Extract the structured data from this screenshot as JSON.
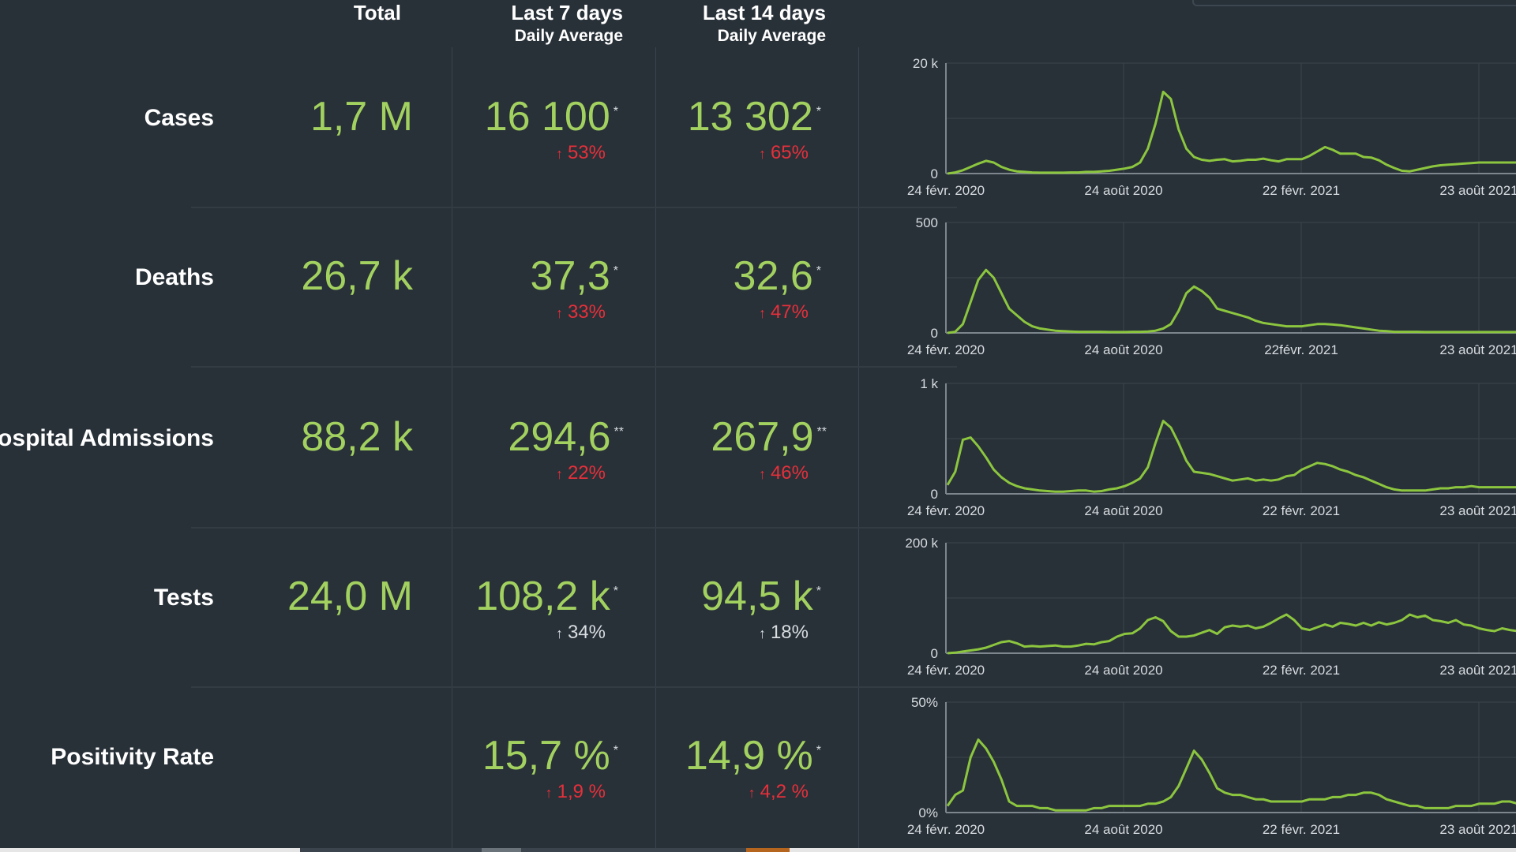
{
  "headers": {
    "total": "Total",
    "last7_title": "Last 7 days",
    "last7_sub": "Daily Average",
    "last14_title": "Last 14 days",
    "last14_sub": "Daily Average"
  },
  "colors": {
    "background": "#283038",
    "value_green": "#a2d160",
    "increase_red": "#e6303a",
    "neutral_grey": "#d8dde0",
    "line_green": "#8cc63f"
  },
  "rows": [
    {
      "label": "Cases",
      "total": "1,7 M",
      "last7": "16 100",
      "last7_mark": "*",
      "last7_change": "53%",
      "last7_color": "red",
      "last14": "13 302",
      "last14_mark": "*",
      "last14_change": "65%",
      "last14_color": "red",
      "arrow": "↑",
      "chart": {
        "y_top_label": "20 k",
        "y_bottom_label": "0",
        "ylim": [
          0,
          20000
        ],
        "x_labels": [
          "24 févr. 2020",
          "24 août 2020",
          "22 févr. 2021",
          "23 août 2021"
        ],
        "series": [
          0,
          200,
          600,
          1200,
          1800,
          2300,
          2000,
          1200,
          700,
          400,
          300,
          200,
          150,
          150,
          150,
          150,
          200,
          200,
          300,
          300,
          400,
          500,
          700,
          900,
          1200,
          2000,
          4500,
          9000,
          14800,
          13500,
          8000,
          4500,
          3000,
          2500,
          2300,
          2500,
          2600,
          2200,
          2300,
          2500,
          2500,
          2700,
          2400,
          2200,
          2600,
          2600,
          2600,
          3200,
          4000,
          4800,
          4300,
          3600,
          3600,
          3600,
          3000,
          2900,
          2400,
          1600,
          1000,
          500,
          400,
          700,
          1000,
          1300,
          1500,
          1600,
          1700,
          1800,
          1900,
          2000,
          2000,
          2000,
          2000,
          2000,
          2000
        ]
      }
    },
    {
      "label": "Deaths",
      "total": "26,7 k",
      "last7": "37,3",
      "last7_mark": "*",
      "last7_change": "33%",
      "last7_color": "red",
      "last14": "32,6",
      "last14_mark": "*",
      "last14_change": "47%",
      "last14_color": "red",
      "arrow": "↑",
      "chart": {
        "y_top_label": "500",
        "y_bottom_label": "0",
        "ylim": [
          0,
          500
        ],
        "x_labels": [
          "24 févr. 2020",
          "24 août 2020",
          "22févr. 2021",
          "23 août 2021"
        ],
        "series": [
          0,
          5,
          40,
          140,
          240,
          285,
          250,
          180,
          110,
          80,
          50,
          30,
          20,
          15,
          10,
          8,
          6,
          5,
          5,
          5,
          5,
          4,
          4,
          4,
          5,
          5,
          6,
          10,
          20,
          40,
          100,
          180,
          210,
          190,
          160,
          110,
          100,
          90,
          80,
          70,
          55,
          45,
          40,
          35,
          30,
          30,
          30,
          35,
          40,
          40,
          38,
          35,
          30,
          25,
          20,
          15,
          10,
          8,
          5,
          5,
          5,
          5,
          4,
          4,
          4,
          4,
          4,
          4,
          4,
          4,
          4,
          4,
          4,
          4,
          4
        ]
      }
    },
    {
      "label": "Hospital Admissions",
      "total": "88,2 k",
      "last7": "294,6",
      "last7_mark": "**",
      "last7_change": "22%",
      "last7_color": "red",
      "last14": "267,9",
      "last14_mark": "**",
      "last14_change": "46%",
      "last14_color": "red",
      "arrow": "↑",
      "chart": {
        "y_top_label": "1 k",
        "y_bottom_label": "0",
        "ylim": [
          0,
          1000
        ],
        "x_labels": [
          "24 févr. 2020",
          "24 août 2020",
          "22 févr. 2021",
          "23 août 2021"
        ],
        "series": [
          80,
          200,
          490,
          510,
          430,
          330,
          220,
          150,
          100,
          70,
          50,
          40,
          30,
          25,
          20,
          20,
          25,
          30,
          30,
          20,
          25,
          40,
          50,
          70,
          100,
          140,
          240,
          460,
          660,
          600,
          460,
          300,
          200,
          190,
          180,
          160,
          140,
          120,
          130,
          140,
          120,
          130,
          120,
          130,
          160,
          170,
          220,
          250,
          280,
          270,
          250,
          220,
          200,
          170,
          150,
          120,
          90,
          60,
          40,
          30,
          30,
          30,
          30,
          40,
          50,
          50,
          60,
          60,
          70,
          60,
          60,
          60,
          60,
          60,
          60
        ]
      }
    },
    {
      "label": "Tests",
      "total": "24,0 M",
      "last7": "108,2 k",
      "last7_mark": "*",
      "last7_change": "34%",
      "last7_color": "grey",
      "last14": "94,5 k",
      "last14_mark": "*",
      "last14_change": "18%",
      "last14_color": "grey",
      "arrow": "↑",
      "chart": {
        "y_top_label": "200 k",
        "y_bottom_label": "0",
        "ylim": [
          0,
          200000
        ],
        "x_labels": [
          "24 févr. 2020",
          "24 août 2020",
          "22 févr. 2021",
          "23 août 2021"
        ],
        "series": [
          0,
          1000,
          3000,
          5000,
          7000,
          10000,
          15000,
          20000,
          22000,
          18000,
          12000,
          13000,
          12000,
          13000,
          14000,
          12000,
          12000,
          14000,
          17000,
          16000,
          20000,
          22000,
          30000,
          35000,
          36000,
          45000,
          60000,
          65000,
          58000,
          40000,
          30000,
          30000,
          32000,
          37000,
          42000,
          35000,
          47000,
          50000,
          48000,
          50000,
          45000,
          48000,
          55000,
          63000,
          70000,
          60000,
          45000,
          42000,
          47000,
          52000,
          48000,
          55000,
          53000,
          50000,
          55000,
          50000,
          56000,
          52000,
          55000,
          60000,
          70000,
          65000,
          68000,
          60000,
          58000,
          55000,
          60000,
          52000,
          50000,
          45000,
          42000,
          40000,
          45000,
          42000,
          40000
        ]
      }
    },
    {
      "label": "Positivity Rate",
      "total": "",
      "last7": "15,7 %",
      "last7_mark": "*",
      "last7_change": "1,9 %",
      "last7_color": "red",
      "last14": "14,9 %",
      "last14_mark": "*",
      "last14_change": "4,2 %",
      "last14_color": "red",
      "arrow": "↑",
      "chart": {
        "y_top_label": "50%",
        "y_bottom_label": "0%",
        "ylim": [
          0,
          50
        ],
        "x_labels": [
          "24 févr. 2020",
          "24 août 2020",
          "22 févr. 2021",
          "23 août 2021"
        ],
        "series": [
          3,
          8,
          10,
          25,
          33,
          29,
          23,
          15,
          5,
          3,
          3,
          3,
          2,
          2,
          1,
          1,
          1,
          1,
          1,
          2,
          2,
          3,
          3,
          3,
          3,
          3,
          4,
          4,
          5,
          7,
          12,
          20,
          28,
          24,
          18,
          11,
          9,
          8,
          8,
          7,
          6,
          6,
          5,
          5,
          5,
          5,
          5,
          6,
          6,
          6,
          7,
          7,
          8,
          8,
          9,
          9,
          8,
          6,
          5,
          4,
          3,
          3,
          2,
          2,
          2,
          2,
          3,
          3,
          3,
          4,
          4,
          4,
          5,
          5,
          4
        ]
      }
    }
  ]
}
